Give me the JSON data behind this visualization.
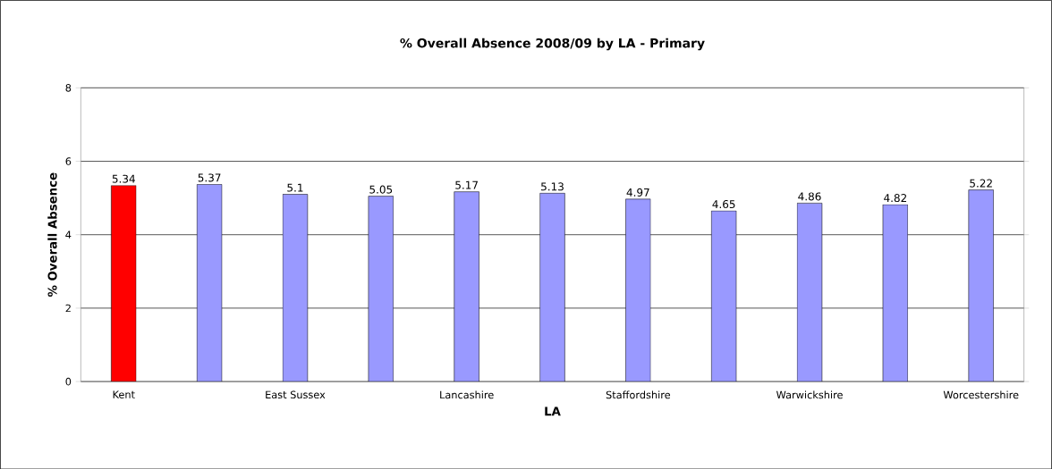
{
  "chart_data": {
    "type": "bar",
    "title": "% Overall Absence 2008/09 by LA - Primary",
    "xlabel": "LA",
    "ylabel": "% Overall Absence",
    "categories": [
      "Kent",
      null,
      "East Sussex",
      null,
      "Lancashire",
      null,
      "Staffordshire",
      null,
      "Warwickshire",
      null,
      "Worcestershire"
    ],
    "values": [
      5.34,
      5.37,
      5.1,
      5.05,
      5.17,
      5.13,
      4.97,
      4.65,
      4.86,
      4.82,
      5.22
    ],
    "colors": [
      "#ff0000",
      "#9999ff",
      "#9999ff",
      "#9999ff",
      "#9999ff",
      "#9999ff",
      "#9999ff",
      "#9999ff",
      "#9999ff",
      "#9999ff",
      "#9999ff"
    ],
    "ylim": [
      0,
      8
    ],
    "yticks": [
      0,
      2,
      4,
      6,
      8
    ],
    "grid": "y",
    "data_labels": true
  }
}
